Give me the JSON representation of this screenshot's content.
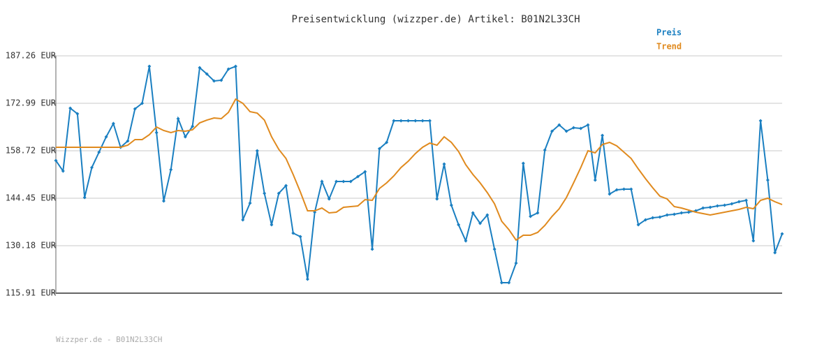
{
  "chart_data": {
    "type": "line",
    "title": "Preisentwicklung (wizzper.de) Artikel: B01N2L33CH",
    "footer": "Wizzper.de - B01N2L33CH",
    "legend": "upper right",
    "grid": true,
    "ylim": [
      115.91,
      187.26
    ],
    "yticks": [
      {
        "value": 115.91,
        "label": "115.91 EUR"
      },
      {
        "value": 130.18,
        "label": "130.18 EUR"
      },
      {
        "value": 144.45,
        "label": "144.45 EUR"
      },
      {
        "value": 158.72,
        "label": "158.72 EUR"
      },
      {
        "value": 172.99,
        "label": "172.99 EUR"
      },
      {
        "value": 187.26,
        "label": "187.26 EUR"
      }
    ],
    "series": [
      {
        "name": "Preis",
        "color": "#1a7fc1",
        "markers": true,
        "values": [
          155.78,
          152.63,
          171.52,
          169.84,
          144.66,
          153.68,
          158.3,
          162.92,
          166.9,
          159.77,
          161.66,
          171.31,
          172.99,
          184.11,
          164.18,
          143.61,
          153.05,
          168.37,
          162.92,
          166.07,
          183.69,
          181.8,
          179.71,
          179.92,
          183.27,
          184.11,
          137.95,
          142.98,
          158.72,
          145.92,
          136.48,
          145.92,
          148.23,
          133.96,
          132.91,
          120.11,
          140.25,
          149.49,
          144.24,
          149.49,
          149.49,
          149.49,
          150.96,
          152.42,
          129.13,
          159.35,
          161.24,
          167.74,
          167.74,
          167.74,
          167.74,
          167.74,
          167.74,
          144.24,
          154.73,
          142.35,
          136.48,
          131.65,
          140.04,
          136.9,
          139.41,
          129.13,
          119.06,
          119.06,
          124.93,
          154.94,
          138.99,
          140.04,
          158.93,
          164.6,
          166.48,
          164.6,
          165.65,
          165.44,
          166.48,
          149.91,
          163.34,
          145.71,
          146.97,
          147.18,
          147.18,
          136.48,
          137.95,
          138.57,
          138.78,
          139.41,
          139.62,
          140.04,
          140.25,
          140.67,
          141.51,
          141.72,
          142.14,
          142.35,
          142.77,
          143.4,
          143.82,
          131.65,
          167.74,
          149.91,
          128.08,
          133.75
        ]
      },
      {
        "name": "Trend",
        "color": "#e08a1e",
        "markers": false,
        "values": [
          159.77,
          159.77,
          159.77,
          159.77,
          159.77,
          159.77,
          159.77,
          159.77,
          159.77,
          159.77,
          160.4,
          162.08,
          162.08,
          163.55,
          165.86,
          164.81,
          164.18,
          164.81,
          164.6,
          165.02,
          167.11,
          167.95,
          168.58,
          168.37,
          170.26,
          174.25,
          172.99,
          170.47,
          170.05,
          167.95,
          162.92,
          159.14,
          156.41,
          151.59,
          146.34,
          140.67,
          140.67,
          141.51,
          140.04,
          140.25,
          141.72,
          141.93,
          142.14,
          144.03,
          143.82,
          147.39,
          149.07,
          151.17,
          153.68,
          155.57,
          157.88,
          159.77,
          161.03,
          160.4,
          162.92,
          161.24,
          158.51,
          154.52,
          151.59,
          149.07,
          146.13,
          142.77,
          137.53,
          135.01,
          131.86,
          133.33,
          133.33,
          134.17,
          136.27,
          138.99,
          141.3,
          144.66,
          149.07,
          153.68,
          158.72,
          158.09,
          160.61,
          161.24,
          160.19,
          158.3,
          156.41,
          153.26,
          150.33,
          147.6,
          145.08,
          144.24,
          141.93,
          141.51,
          140.88,
          140.25,
          139.83,
          139.41,
          139.83,
          140.25,
          140.67,
          141.09,
          141.72,
          141.3,
          143.82,
          144.45,
          143.4,
          142.56
        ]
      }
    ]
  }
}
